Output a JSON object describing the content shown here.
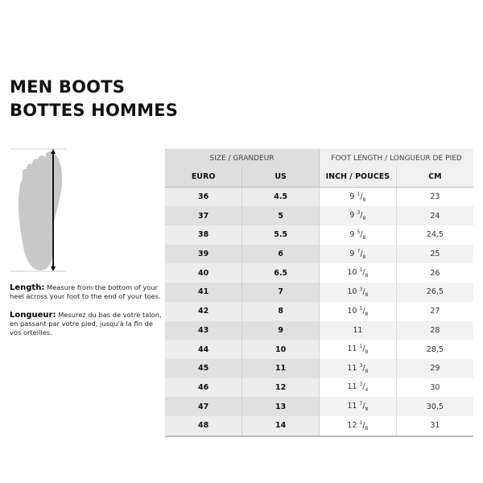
{
  "title_en": "MEN BOOTS",
  "title_fr": "BOTTES HOMMES",
  "length": {
    "label": "Length:",
    "text": "Measure from the bottom of your heel across your foot to the end of your toes."
  },
  "longueur": {
    "label": "Longueur:",
    "text": "Mesurez du bas de votre talon, en passant par votre pied, jusqu'à la fin de vos orteilles."
  },
  "table": {
    "group_headers": [
      "SIZE / GRANDEUR",
      "FOOT LENGTH / LONGUEUR DE PIED"
    ],
    "columns": [
      "EURO",
      "US",
      "INCH / POUCES",
      "CM"
    ],
    "rows": [
      {
        "euro": "36",
        "us": "4.5",
        "inch": {
          "whole": "9",
          "num": "1",
          "den": "8"
        },
        "cm": "23"
      },
      {
        "euro": "37",
        "us": "5",
        "inch": {
          "whole": "9",
          "num": "3",
          "den": "8"
        },
        "cm": "24"
      },
      {
        "euro": "38",
        "us": "5.5",
        "inch": {
          "whole": "9",
          "num": "5",
          "den": "8"
        },
        "cm": "24,5"
      },
      {
        "euro": "39",
        "us": "6",
        "inch": {
          "whole": "9",
          "num": "7",
          "den": "8"
        },
        "cm": "25"
      },
      {
        "euro": "40",
        "us": "6.5",
        "inch": {
          "whole": "10",
          "num": "1",
          "den": "8"
        },
        "cm": "26"
      },
      {
        "euro": "41",
        "us": "7",
        "inch": {
          "whole": "10",
          "num": "3",
          "den": "8"
        },
        "cm": "26,5"
      },
      {
        "euro": "42",
        "us": "8",
        "inch": {
          "whole": "10",
          "num": "5",
          "den": "8"
        },
        "cm": "27"
      },
      {
        "euro": "43",
        "us": "9",
        "inch": {
          "whole": "11",
          "num": "",
          "den": ""
        },
        "cm": "28"
      },
      {
        "euro": "44",
        "us": "10",
        "inch": {
          "whole": "11",
          "num": "1",
          "den": "8"
        },
        "cm": "28,5"
      },
      {
        "euro": "45",
        "us": "11",
        "inch": {
          "whole": "11",
          "num": "3",
          "den": "8"
        },
        "cm": "29"
      },
      {
        "euro": "46",
        "us": "12",
        "inch": {
          "whole": "11",
          "num": "3",
          "den": "4"
        },
        "cm": "30"
      },
      {
        "euro": "47",
        "us": "13",
        "inch": {
          "whole": "11",
          "num": "7",
          "den": "8"
        },
        "cm": "30,5"
      },
      {
        "euro": "48",
        "us": "14",
        "inch": {
          "whole": "12",
          "num": "1",
          "den": "8"
        },
        "cm": "31"
      }
    ]
  }
}
